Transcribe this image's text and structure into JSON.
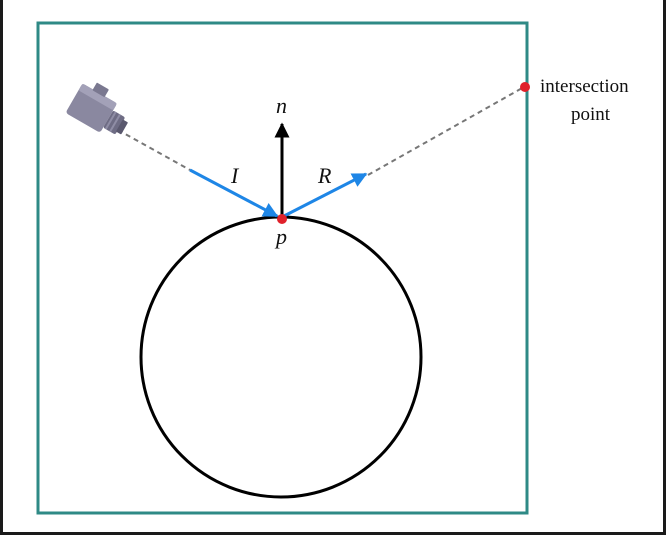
{
  "colors": {
    "frame": "#2f8a86",
    "vector": "#1e86e6",
    "point": "#e0212b",
    "stroke": "#000000",
    "dashed": "#777777",
    "camera": "#8a88a0"
  },
  "labels": {
    "normal": "n",
    "incident": "I",
    "reflected": "R",
    "point": "p",
    "intersection_line1": "intersection",
    "intersection_line2": "point"
  },
  "icons": {
    "camera": "camera-icon"
  }
}
